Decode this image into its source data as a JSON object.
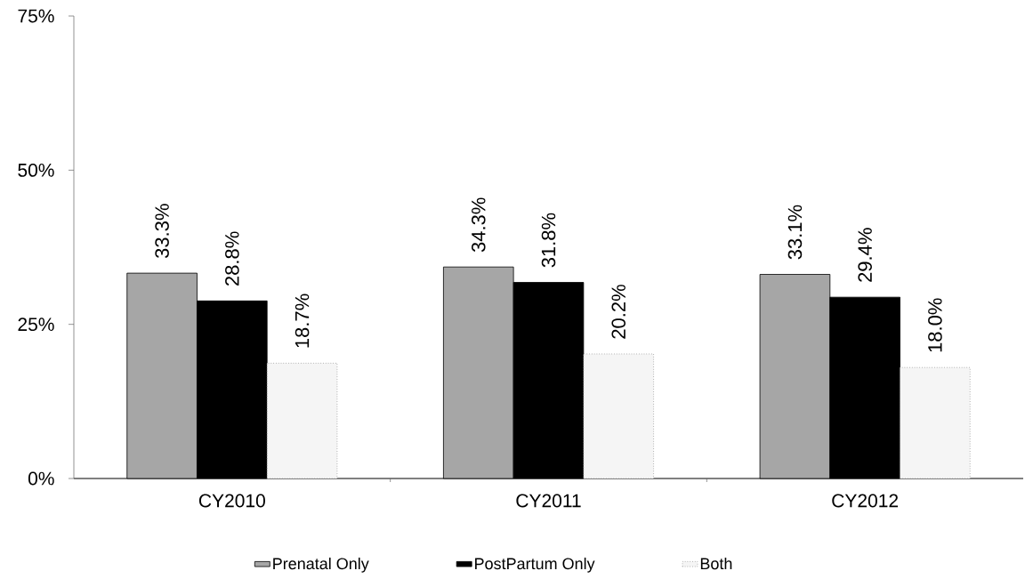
{
  "chart_data": {
    "type": "bar",
    "categories": [
      "CY2010",
      "CY2011",
      "CY2012"
    ],
    "series": [
      {
        "name": "Prenatal Only",
        "color": "#a6a6a6",
        "values": [
          33.3,
          34.3,
          33.1
        ],
        "value_labels": [
          "33.3%",
          "34.3%",
          "33.1%"
        ]
      },
      {
        "name": "PostPartum Only",
        "color": "#000000",
        "values": [
          28.8,
          31.8,
          29.4
        ],
        "value_labels": [
          "28.8%",
          "31.8%",
          "29.4%"
        ]
      },
      {
        "name": "Both",
        "color": "#f5f5f5",
        "values": [
          18.7,
          20.2,
          18.0
        ],
        "value_labels": [
          "18.7%",
          "20.2%",
          "18.0%"
        ]
      }
    ],
    "ylim": [
      0,
      75
    ],
    "yticks": [
      {
        "value": 0,
        "label": "0%"
      },
      {
        "value": 25,
        "label": "25%"
      },
      {
        "value": 50,
        "label": "50%"
      },
      {
        "value": 75,
        "label": "75%"
      }
    ],
    "legend": "bottom"
  }
}
